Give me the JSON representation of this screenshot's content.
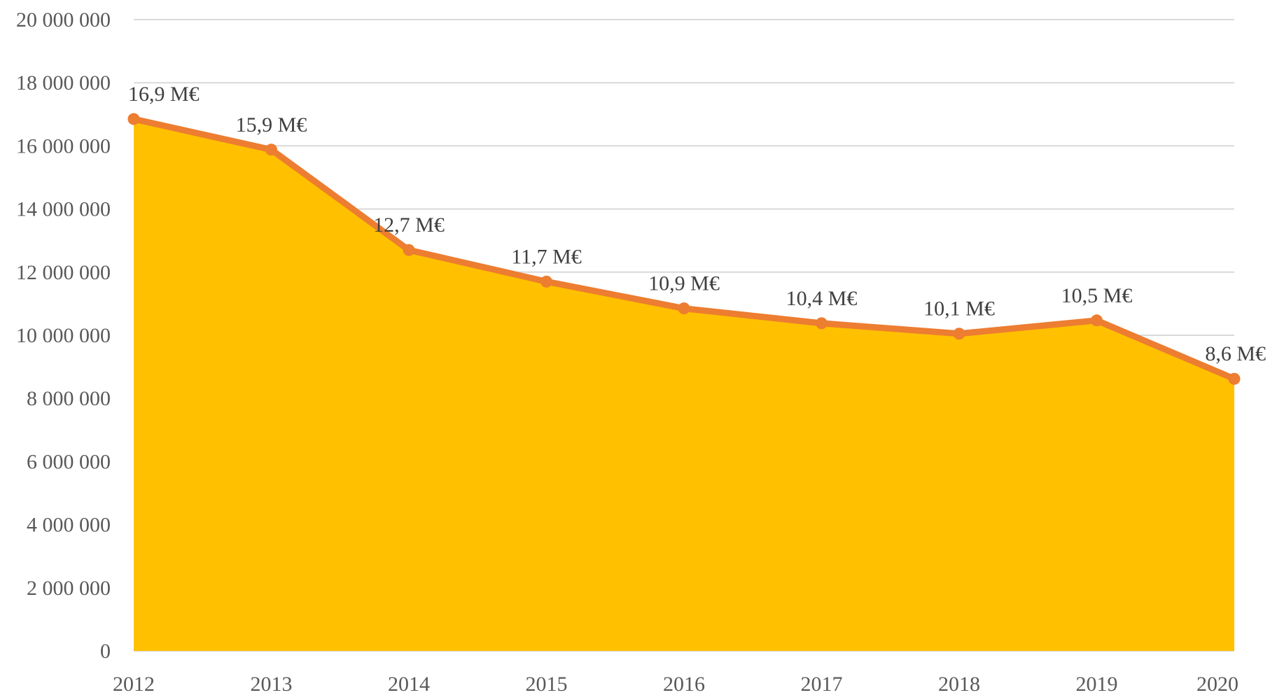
{
  "chart_data": {
    "type": "area",
    "title": "",
    "xlabel": "",
    "ylabel": "",
    "x": [
      "2012",
      "2013",
      "2014",
      "2015",
      "2016",
      "2017",
      "2018",
      "2019",
      "2020"
    ],
    "values": [
      16850000,
      15880000,
      12700000,
      11700000,
      10850000,
      10380000,
      10050000,
      10470000,
      8620000
    ],
    "data_labels": [
      "16,9 M€",
      "15,9 M€",
      "12,7 M€",
      "11,7 M€",
      "10,9 M€",
      "10,4 M€",
      "10,1 M€",
      "10,5 M€",
      "8,6 M€"
    ],
    "ylim": [
      0,
      20000000
    ],
    "y_ticks": [
      0,
      2000000,
      4000000,
      6000000,
      8000000,
      10000000,
      12000000,
      14000000,
      16000000,
      18000000,
      20000000
    ],
    "y_tick_labels": [
      "0",
      "2 000 000",
      "4 000 000",
      "6 000 000",
      "8 000 000",
      "10 000 000",
      "12 000 000",
      "14 000 000",
      "16 000 000",
      "18 000 000",
      "20 000 000"
    ],
    "grid": true,
    "legend": "none",
    "colors": {
      "area_fill": "#FFC000",
      "line": "#ED7D31",
      "gridline": "#D9D9D9",
      "tick_text": "#595959",
      "label_text": "#404040"
    }
  }
}
